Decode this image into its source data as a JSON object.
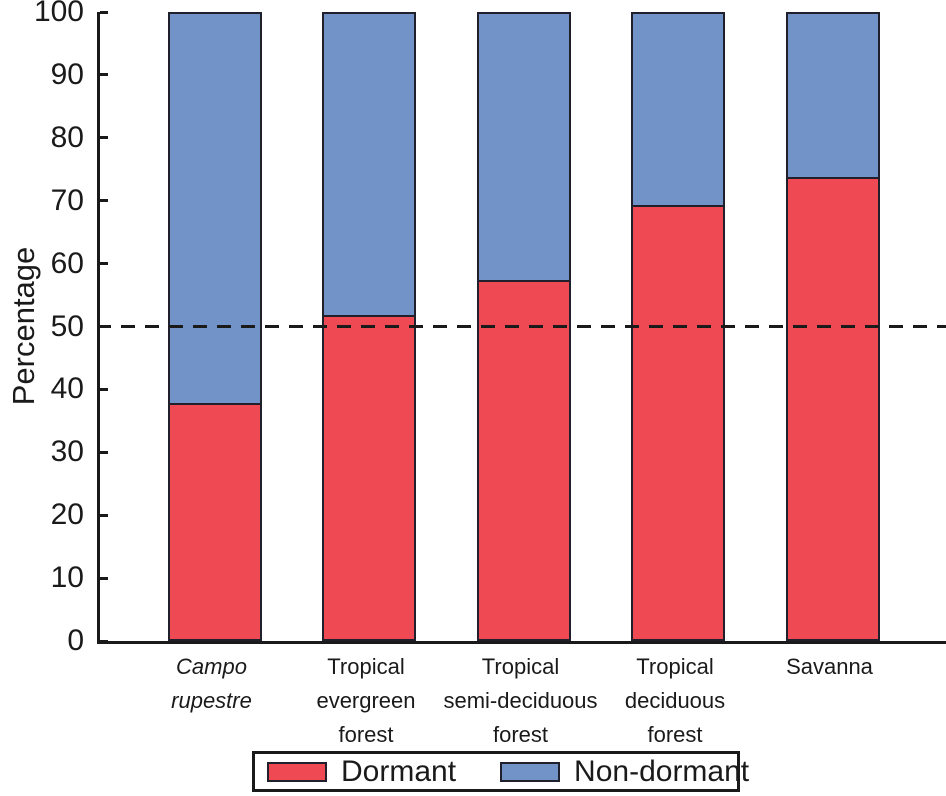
{
  "chart_data": {
    "type": "bar",
    "subtype": "stacked-percentage",
    "title": "",
    "xlabel": "",
    "ylabel": "Percentage",
    "ylim": [
      0,
      100
    ],
    "yticks": [
      0,
      10,
      20,
      30,
      40,
      50,
      60,
      70,
      80,
      90,
      100
    ],
    "grid": false,
    "reference_line": {
      "value": 50,
      "style": "dashed",
      "color": "#1a1a1a"
    },
    "categories": [
      {
        "label": "Campo rupestre",
        "lines": [
          "Campo",
          "rupestre"
        ],
        "italic": true
      },
      {
        "label": "Tropical evergreen forest",
        "lines": [
          "Tropical",
          "evergreen",
          "forest"
        ],
        "italic": false
      },
      {
        "label": "Tropical semi-deciduous forest",
        "lines": [
          "Tropical",
          "semi-deciduous",
          "forest"
        ],
        "italic": false
      },
      {
        "label": "Tropical deciduous forest",
        "lines": [
          "Tropical",
          "deciduous",
          "forest"
        ],
        "italic": false
      },
      {
        "label": "Savanna",
        "lines": [
          "Savanna"
        ],
        "italic": false
      }
    ],
    "series": [
      {
        "name": "Dormant",
        "color": "#EF4A53",
        "values": [
          37.5,
          51.5,
          57.0,
          69.0,
          73.5
        ]
      },
      {
        "name": "Non-dormant",
        "color": "#7293C8",
        "values": [
          62.5,
          48.5,
          43.0,
          31.0,
          26.5
        ]
      }
    ],
    "legend": {
      "position": "bottom",
      "entries": [
        "Dormant",
        "Non-dormant"
      ]
    },
    "colors": {
      "axis": "#1a1a1a",
      "bar_border": "#20202c",
      "background": "#ffffff"
    }
  }
}
